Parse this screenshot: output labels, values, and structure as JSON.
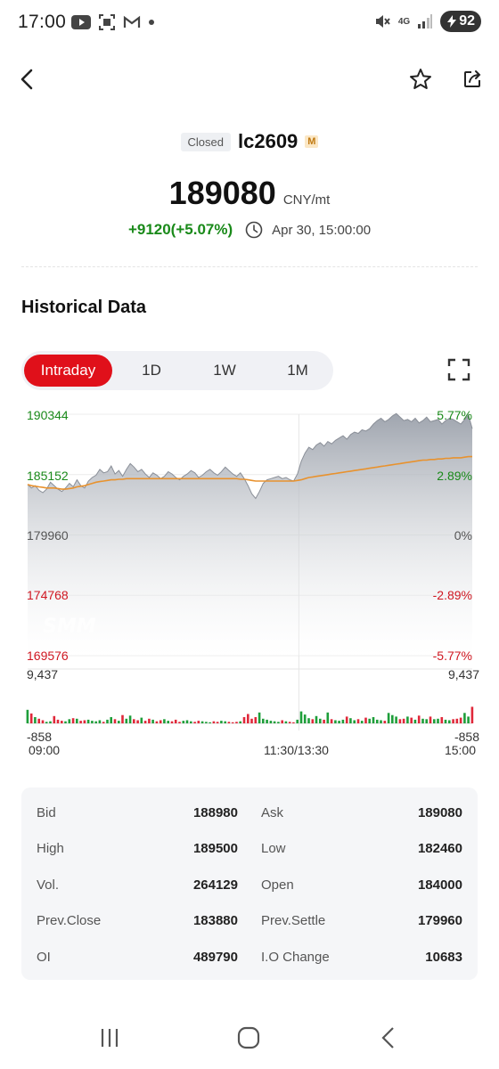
{
  "status_bar": {
    "time": "17:00",
    "battery": "92",
    "network": "4G"
  },
  "header": {
    "back_icon": "back-arrow-icon",
    "favorite_icon": "star-icon",
    "share_icon": "share-icon"
  },
  "instrument": {
    "status": "Closed",
    "symbol": "lc2609",
    "badge": "M",
    "price": "189080",
    "unit": "CNY/mt",
    "change": "+9120(+5.07%)",
    "timestamp": "Apr 30, 15:00:00"
  },
  "section_title": "Historical Data",
  "tabs": [
    {
      "label": "Intraday",
      "active": true
    },
    {
      "label": "1D",
      "active": false
    },
    {
      "label": "1W",
      "active": false
    },
    {
      "label": "1M",
      "active": false
    }
  ],
  "chart_data": {
    "type": "area",
    "watermark": "SMM",
    "price_axis": [
      "190344",
      "185152",
      "179960",
      "174768",
      "169576"
    ],
    "percent_axis": [
      "5.77%",
      "2.89%",
      "0%",
      "-2.89%",
      "-5.77%"
    ],
    "volume_axis": {
      "max": "9,437",
      "min": "-858"
    },
    "x_labels": [
      "09:00",
      "11:30/13:30",
      "15:00"
    ],
    "ylim": [
      169576,
      190344
    ],
    "price_series": [
      184300,
      184000,
      184200,
      183800,
      183600,
      183900,
      184500,
      184200,
      183900,
      183700,
      184000,
      184400,
      184100,
      184700,
      184200,
      184000,
      184600,
      184900,
      185100,
      185600,
      185300,
      185400,
      185900,
      185200,
      185500,
      185000,
      185600,
      186100,
      185800,
      185400,
      185600,
      185200,
      184900,
      185300,
      185100,
      184800,
      185000,
      185400,
      185200,
      184900,
      184700,
      185000,
      185200,
      185500,
      185300,
      184900,
      185100,
      185400,
      185600,
      185300,
      185100,
      185400,
      185800,
      185500,
      185200,
      185000,
      185300,
      184800,
      184200,
      183500,
      183100,
      183700,
      184400,
      184700,
      184800,
      184900,
      185000,
      184800,
      184900,
      184700,
      184600,
      185200,
      186300,
      187000,
      187500,
      187300,
      187700,
      187900,
      187600,
      188000,
      187800,
      188100,
      188300,
      188500,
      188200,
      188600,
      188800,
      188700,
      189000,
      188900,
      189100,
      189500,
      189800,
      190000,
      189700,
      189900,
      190200,
      190400,
      190100,
      189800,
      189900,
      189700,
      190000,
      189600,
      189800,
      190100,
      189700,
      189800,
      189900,
      189500,
      189800,
      190000,
      189900,
      189700,
      189500,
      189900,
      190300,
      189100
    ],
    "avg_series": [
      184300,
      184200,
      184150,
      184100,
      184050,
      184000,
      184000,
      184000,
      183950,
      183900,
      183900,
      183950,
      184000,
      184100,
      184150,
      184200,
      184300,
      184400,
      184500,
      184550,
      184600,
      184650,
      184700,
      184700,
      184750,
      184750,
      184800,
      184800,
      184800,
      184800,
      184800,
      184800,
      184800,
      184800,
      184800,
      184800,
      184800,
      184800,
      184800,
      184800,
      184800,
      184800,
      184800,
      184800,
      184800,
      184800,
      184800,
      184800,
      184800,
      184800,
      184800,
      184800,
      184800,
      184800,
      184800,
      184800,
      184750,
      184750,
      184700,
      184650,
      184600,
      184600,
      184600,
      184600,
      184600,
      184600,
      184600,
      184600,
      184600,
      184600,
      184600,
      184650,
      184700,
      184800,
      184900,
      184950,
      185000,
      185050,
      185100,
      185150,
      185200,
      185250,
      185300,
      185350,
      185400,
      185450,
      185500,
      185550,
      185600,
      185650,
      185700,
      185750,
      185800,
      185850,
      185900,
      185950,
      186000,
      186050,
      186100,
      186150,
      186200,
      186250,
      186300,
      186350,
      186400,
      186400,
      186450,
      186450,
      186500,
      186500,
      186550,
      186550,
      186600,
      186600,
      186600,
      186650,
      186700,
      186700
    ],
    "volume_series": [
      2600,
      1900,
      1200,
      900,
      600,
      300,
      400,
      1400,
      700,
      500,
      400,
      800,
      1000,
      900,
      500,
      600,
      700,
      500,
      400,
      600,
      300,
      700,
      1200,
      800,
      500,
      1600,
      900,
      1500,
      800,
      600,
      1100,
      500,
      900,
      700,
      400,
      600,
      800,
      500,
      400,
      700,
      300,
      500,
      600,
      400,
      300,
      500,
      400,
      300,
      200,
      400,
      300,
      500,
      400,
      300,
      200,
      300,
      400,
      1200,
      1800,
      900,
      1200,
      2100,
      900,
      700,
      500,
      400,
      300,
      600,
      400,
      300,
      200,
      700,
      2300,
      1700,
      1000,
      800,
      1400,
      900,
      700,
      2100,
      800,
      600,
      500,
      700,
      1300,
      1000,
      600,
      800,
      500,
      1100,
      900,
      1200,
      700,
      600,
      500,
      2000,
      1600,
      1300,
      800,
      900,
      1300,
      1100,
      700,
      1500,
      900,
      800,
      1300,
      800,
      900,
      1200,
      700,
      600,
      800,
      900,
      1100,
      2000,
      1300,
      3200
    ]
  },
  "stats": [
    {
      "label_left": "Bid",
      "value_left": "188980",
      "label_right": "Ask",
      "value_right": "189080"
    },
    {
      "label_left": "High",
      "value_left": "189500",
      "label_right": "Low",
      "value_right": "182460"
    },
    {
      "label_left": "Vol.",
      "value_left": "264129",
      "label_right": "Open",
      "value_right": "184000"
    },
    {
      "label_left": "Prev.Close",
      "value_left": "183880",
      "label_right": "Prev.Settle",
      "value_right": "179960"
    },
    {
      "label_left": "OI",
      "value_left": "489790",
      "label_right": "I.O Change",
      "value_right": "10683"
    }
  ]
}
